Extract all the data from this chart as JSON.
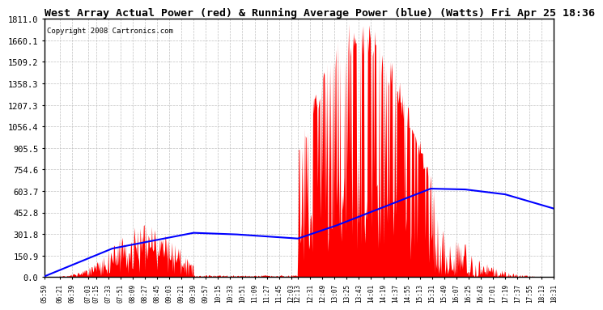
{
  "title": "West Array Actual Power (red) & Running Average Power (blue) (Watts) Fri Apr 25 18:36",
  "copyright": "Copyright 2008 Cartronics.com",
  "yticks": [
    0.0,
    150.9,
    301.8,
    452.8,
    603.7,
    754.6,
    905.5,
    1056.4,
    1207.3,
    1358.3,
    1509.2,
    1660.1,
    1811.0
  ],
  "ymax": 1811.0,
  "bg_color": "#ffffff",
  "grid_color": "#c0c0c0",
  "red_color": "#ff0000",
  "blue_color": "#0000ff",
  "xtick_labels": [
    "05:59",
    "06:21",
    "06:39",
    "07:03",
    "07:15",
    "07:33",
    "07:51",
    "08:09",
    "08:27",
    "08:45",
    "09:03",
    "09:21",
    "09:39",
    "09:57",
    "10:15",
    "10:33",
    "10:51",
    "11:09",
    "11:27",
    "11:45",
    "12:03",
    "12:13",
    "12:31",
    "12:49",
    "13:07",
    "13:25",
    "13:43",
    "14:01",
    "14:19",
    "14:37",
    "14:55",
    "15:13",
    "15:31",
    "15:49",
    "16:07",
    "16:25",
    "16:43",
    "17:01",
    "17:19",
    "17:37",
    "17:55",
    "18:13",
    "18:31"
  ],
  "title_fontsize": 9.5,
  "copyright_fontsize": 6.5,
  "ytick_fontsize": 7.5,
  "xtick_fontsize": 5.5
}
